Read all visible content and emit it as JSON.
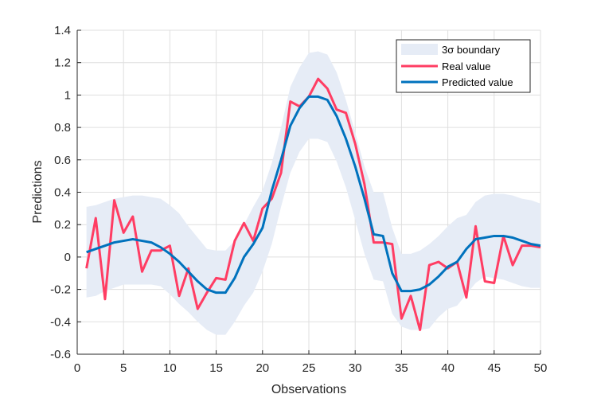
{
  "chart_data": {
    "type": "line",
    "xlabel": "Observations",
    "ylabel": "Predictions",
    "xlim": [
      0,
      50
    ],
    "ylim": [
      -0.6,
      1.4
    ],
    "xticks": [
      0,
      5,
      10,
      15,
      20,
      25,
      30,
      35,
      40,
      45,
      50
    ],
    "yticks": [
      -0.6,
      -0.4,
      -0.2,
      0,
      0.2,
      0.4,
      0.6,
      0.8,
      1,
      1.2,
      1.4
    ],
    "xtick_labels": [
      "0",
      "5",
      "10",
      "15",
      "20",
      "25",
      "30",
      "35",
      "40",
      "45",
      "50"
    ],
    "ytick_labels": [
      "-0.6",
      "-0.4",
      "-0.2",
      "0",
      "0.2",
      "0.4",
      "0.6",
      "0.8",
      "1",
      "1.2",
      "1.4"
    ],
    "grid": true,
    "legend_position": "top-right",
    "x": [
      1,
      2,
      3,
      4,
      5,
      6,
      7,
      8,
      9,
      10,
      11,
      12,
      13,
      14,
      15,
      16,
      17,
      18,
      19,
      20,
      21,
      22,
      23,
      24,
      25,
      26,
      27,
      28,
      29,
      30,
      31,
      32,
      33,
      34,
      35,
      36,
      37,
      38,
      39,
      40,
      41,
      42,
      43,
      44,
      45,
      46,
      47,
      48,
      49,
      50
    ],
    "band": {
      "name": "3σ boundary",
      "color": "#e6ecf6",
      "upper": [
        0.31,
        0.32,
        0.34,
        0.36,
        0.37,
        0.38,
        0.38,
        0.37,
        0.36,
        0.32,
        0.27,
        0.19,
        0.12,
        0.05,
        0.04,
        0.04,
        0.1,
        0.2,
        0.31,
        0.41,
        0.58,
        0.8,
        1.05,
        1.17,
        1.26,
        1.27,
        1.25,
        1.14,
        0.97,
        0.77,
        0.56,
        0.4,
        0.4,
        0.18,
        0.02,
        0.02,
        0.04,
        0.08,
        0.13,
        0.19,
        0.24,
        0.26,
        0.34,
        0.38,
        0.39,
        0.39,
        0.38,
        0.36,
        0.35,
        0.33
      ],
      "lower": [
        -0.25,
        -0.24,
        -0.21,
        -0.19,
        -0.17,
        -0.17,
        -0.17,
        -0.17,
        -0.18,
        -0.23,
        -0.29,
        -0.34,
        -0.4,
        -0.45,
        -0.48,
        -0.48,
        -0.4,
        -0.3,
        -0.22,
        -0.09,
        0.08,
        0.31,
        0.52,
        0.65,
        0.73,
        0.73,
        0.71,
        0.59,
        0.43,
        0.23,
        0.02,
        -0.14,
        -0.15,
        -0.35,
        -0.43,
        -0.45,
        -0.45,
        -0.44,
        -0.37,
        -0.32,
        -0.3,
        -0.23,
        -0.16,
        -0.12,
        -0.13,
        -0.14,
        -0.16,
        -0.18,
        -0.19,
        -0.19
      ]
    },
    "series": [
      {
        "name": "Real value",
        "color": "#ff3d63",
        "values": [
          -0.07,
          0.24,
          -0.26,
          0.35,
          0.15,
          0.25,
          -0.09,
          0.04,
          0.04,
          0.07,
          -0.24,
          -0.07,
          -0.32,
          -0.22,
          -0.13,
          -0.14,
          0.1,
          0.21,
          0.1,
          0.3,
          0.36,
          0.52,
          0.96,
          0.93,
          0.99,
          1.1,
          1.04,
          0.91,
          0.89,
          0.7,
          0.45,
          0.09,
          0.09,
          0.08,
          -0.38,
          -0.24,
          -0.45,
          -0.05,
          -0.03,
          -0.07,
          -0.03,
          -0.25,
          0.19,
          -0.15,
          -0.16,
          0.13,
          -0.05,
          0.07,
          0.07,
          0.06
        ]
      },
      {
        "name": "Predicted value",
        "color": "#0072bd",
        "values": [
          0.03,
          0.05,
          0.07,
          0.09,
          0.1,
          0.11,
          0.1,
          0.09,
          0.06,
          0.02,
          -0.03,
          -0.09,
          -0.15,
          -0.2,
          -0.22,
          -0.22,
          -0.13,
          0.0,
          0.08,
          0.18,
          0.41,
          0.6,
          0.81,
          0.92,
          0.99,
          0.99,
          0.97,
          0.87,
          0.73,
          0.56,
          0.36,
          0.14,
          0.13,
          -0.1,
          -0.21,
          -0.21,
          -0.2,
          -0.17,
          -0.12,
          -0.06,
          -0.03,
          0.05,
          0.11,
          0.12,
          0.13,
          0.13,
          0.12,
          0.1,
          0.08,
          0.07
        ]
      }
    ]
  }
}
